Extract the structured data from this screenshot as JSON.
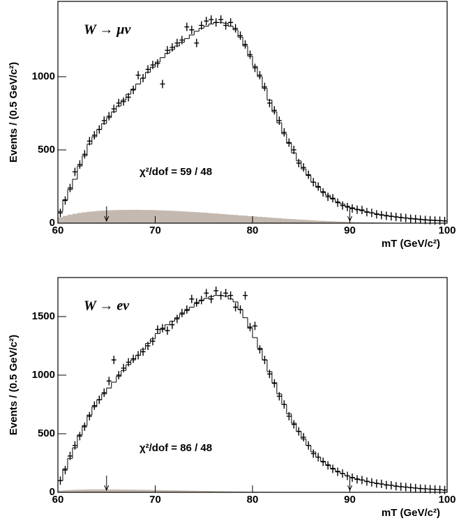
{
  "chart_data": [
    {
      "type": "histogram",
      "annotation": "W → μν",
      "fit_label": "χ²/dof = 59 / 48",
      "xlabel": "mT (GeV/c²)",
      "ylabel": "Events / (0.5 GeV/c²)",
      "xlim": [
        60,
        100
      ],
      "ylim": [
        0,
        1514
      ],
      "xticks": [
        60,
        70,
        80,
        90,
        100
      ],
      "yticks": [
        0,
        500,
        1000
      ],
      "arrows": [
        65,
        90
      ],
      "bins": [
        60,
        60.5,
        61,
        61.5,
        62,
        62.5,
        63,
        63.5,
        64,
        64.5,
        65,
        65.5,
        66,
        66.5,
        67,
        67.5,
        68,
        68.5,
        69,
        69.5,
        70,
        70.5,
        71,
        71.5,
        72,
        72.5,
        73,
        73.5,
        74,
        74.5,
        75,
        75.5,
        76,
        76.5,
        77,
        77.5,
        78,
        78.5,
        79,
        79.5,
        80,
        80.5,
        81,
        81.5,
        82,
        82.5,
        83,
        83.5,
        84,
        84.5,
        85,
        85.5,
        86,
        86.5,
        87,
        87.5,
        88,
        88.5,
        89,
        89.5,
        90,
        90.5,
        91,
        91.5,
        92,
        92.5,
        93,
        93.5,
        94,
        94.5,
        95,
        95.5,
        96,
        96.5,
        97,
        97.5,
        98,
        98.5,
        99,
        99.5,
        100
      ],
      "mc_color": "#000000",
      "data_color": "#000000",
      "background_color": "#c4b9b0",
      "mc_values": [
        80,
        160,
        230,
        300,
        390,
        460,
        540,
        590,
        640,
        680,
        720,
        760,
        800,
        840,
        880,
        915,
        950,
        990,
        1030,
        1065,
        1100,
        1130,
        1160,
        1185,
        1210,
        1235,
        1260,
        1285,
        1310,
        1330,
        1345,
        1360,
        1370,
        1370,
        1365,
        1345,
        1320,
        1270,
        1210,
        1140,
        1070,
        1000,
        920,
        840,
        760,
        685,
        610,
        545,
        480,
        425,
        370,
        325,
        280,
        245,
        215,
        190,
        165,
        145,
        130,
        115,
        105,
        95,
        85,
        78,
        70,
        64,
        58,
        53,
        48,
        44,
        40,
        36,
        33,
        30,
        27,
        24,
        22,
        20,
        18,
        16
      ],
      "data_values": [
        70,
        155,
        240,
        350,
        400,
        470,
        560,
        600,
        640,
        700,
        730,
        780,
        820,
        830,
        860,
        910,
        1010,
        990,
        1050,
        1080,
        1090,
        950,
        1180,
        1200,
        1230,
        1250,
        1340,
        1320,
        1230,
        1350,
        1380,
        1390,
        1370,
        1390,
        1350,
        1370,
        1330,
        1280,
        1220,
        1150,
        1060,
        1010,
        930,
        820,
        770,
        700,
        620,
        550,
        500,
        410,
        380,
        330,
        280,
        250,
        210,
        180,
        170,
        140,
        120,
        110,
        100,
        92,
        90,
        75,
        70,
        60,
        55,
        50,
        46,
        42,
        38,
        35,
        30,
        28,
        25,
        22,
        20,
        18,
        17,
        15
      ],
      "background_values": [
        40,
        50,
        58,
        64,
        70,
        74,
        78,
        81,
        84,
        86,
        88,
        89,
        90,
        90,
        91,
        91,
        91,
        90,
        90,
        89,
        88,
        87,
        86,
        84,
        83,
        81,
        79,
        77,
        75,
        73,
        71,
        68,
        66,
        63,
        61,
        58,
        56,
        53,
        51,
        48,
        46,
        43,
        41,
        38,
        36,
        34,
        31,
        29,
        27,
        25,
        23,
        21,
        19,
        17,
        16,
        14,
        13,
        11,
        10,
        9,
        8,
        7,
        6,
        5,
        5,
        4,
        4,
        3,
        3,
        2,
        2,
        2,
        1,
        1,
        1,
        1,
        1,
        0,
        0,
        0
      ]
    },
    {
      "type": "histogram",
      "annotation": "W → eν",
      "fit_label": "χ²/dof = 86 / 48",
      "xlabel": "mT (GeV/c²)",
      "ylabel": "Events / (0.5 GeV/c²)",
      "xlim": [
        60,
        100
      ],
      "ylim": [
        0,
        1833
      ],
      "xticks": [
        60,
        70,
        80,
        90,
        100
      ],
      "yticks": [
        0,
        500,
        1000,
        1500
      ],
      "arrows": [
        65,
        90
      ],
      "bins": [
        60,
        60.5,
        61,
        61.5,
        62,
        62.5,
        63,
        63.5,
        64,
        64.5,
        65,
        65.5,
        66,
        66.5,
        67,
        67.5,
        68,
        68.5,
        69,
        69.5,
        70,
        70.5,
        71,
        71.5,
        72,
        72.5,
        73,
        73.5,
        74,
        74.5,
        75,
        75.5,
        76,
        76.5,
        77,
        77.5,
        78,
        78.5,
        79,
        79.5,
        80,
        80.5,
        81,
        81.5,
        82,
        82.5,
        83,
        83.5,
        84,
        84.5,
        85,
        85.5,
        86,
        86.5,
        87,
        87.5,
        88,
        88.5,
        89,
        89.5,
        90,
        90.5,
        91,
        91.5,
        92,
        92.5,
        93,
        93.5,
        94,
        94.5,
        95,
        95.5,
        96,
        96.5,
        97,
        97.5,
        98,
        98.5,
        99,
        99.5,
        100
      ],
      "mc_color": "#000000",
      "data_color": "#000000",
      "background_color": "#c4b9b0",
      "mc_values": [
        100,
        200,
        290,
        380,
        490,
        570,
        660,
        730,
        790,
        840,
        890,
        940,
        990,
        1040,
        1090,
        1130,
        1170,
        1220,
        1270,
        1310,
        1355,
        1390,
        1430,
        1460,
        1490,
        1520,
        1550,
        1580,
        1610,
        1635,
        1655,
        1670,
        1680,
        1680,
        1675,
        1650,
        1625,
        1560,
        1490,
        1400,
        1320,
        1230,
        1130,
        1030,
        935,
        840,
        750,
        670,
        590,
        520,
        455,
        400,
        345,
        300,
        265,
        235,
        205,
        180,
        160,
        140,
        128,
        115,
        104,
        95,
        86,
        78,
        71,
        65,
        59,
        54,
        49,
        44,
        40,
        37,
        33,
        30,
        27,
        24,
        22,
        20
      ],
      "data_values": [
        100,
        190,
        310,
        400,
        480,
        560,
        650,
        740,
        790,
        850,
        950,
        1130,
        1000,
        1060,
        1110,
        1140,
        1170,
        1200,
        1250,
        1290,
        1390,
        1400,
        1380,
        1430,
        1480,
        1530,
        1560,
        1650,
        1620,
        1640,
        1700,
        1650,
        1720,
        1680,
        1700,
        1680,
        1580,
        1560,
        1680,
        1410,
        1420,
        1220,
        1130,
        1010,
        930,
        820,
        750,
        650,
        580,
        520,
        470,
        400,
        330,
        300,
        260,
        230,
        200,
        175,
        160,
        140,
        125,
        110,
        105,
        92,
        85,
        75,
        72,
        62,
        60,
        52,
        48,
        45,
        40,
        36,
        32,
        30,
        27,
        25,
        22,
        20
      ],
      "background_values": [
        15,
        18,
        20,
        22,
        23,
        24,
        25,
        25,
        25,
        25,
        25,
        25,
        24,
        24,
        23,
        23,
        22,
        22,
        21,
        20,
        20,
        19,
        18,
        17,
        17,
        16,
        15,
        14,
        13,
        12,
        12,
        11,
        10,
        9,
        9,
        8,
        7,
        7,
        6,
        5,
        5,
        4,
        4,
        4,
        3,
        3,
        3,
        2,
        2,
        2,
        2,
        1,
        1,
        1,
        1,
        1,
        1,
        1,
        1,
        0,
        0,
        0,
        0,
        0,
        0,
        0,
        0,
        0,
        0,
        0,
        0,
        0,
        0,
        0,
        0,
        0,
        0,
        0,
        0,
        0
      ]
    }
  ]
}
